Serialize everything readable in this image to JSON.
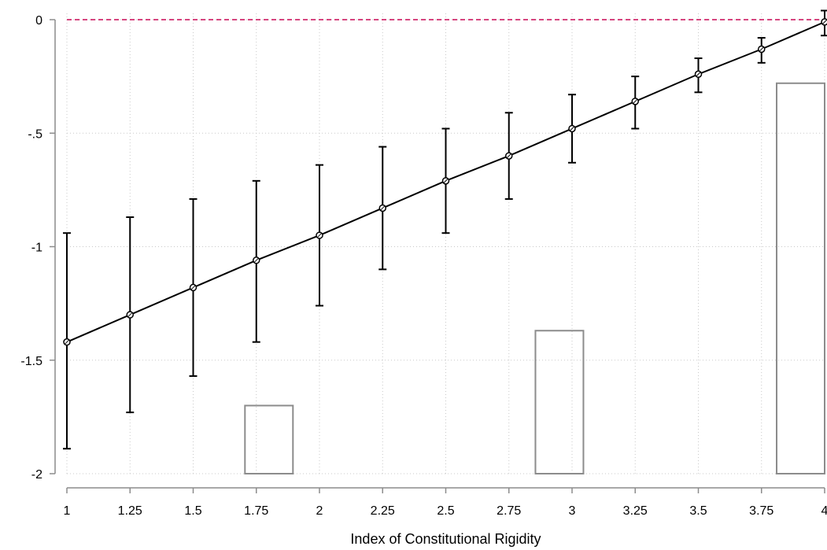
{
  "chart_data": {
    "type": "line",
    "xlabel": "Index of Constitutional Rigidity",
    "ylabel": "",
    "xlim": [
      1,
      4
    ],
    "ylim": [
      -2,
      0
    ],
    "x_ticks": [
      1,
      1.25,
      1.5,
      1.75,
      2,
      2.25,
      2.5,
      2.75,
      3,
      3.25,
      3.5,
      3.75,
      4
    ],
    "x_tick_labels": [
      "1",
      "1.25",
      "1.5",
      "1.75",
      "2",
      "2.25",
      "2.5",
      "2.75",
      "3",
      "3.25",
      "3.5",
      "3.75",
      "4"
    ],
    "y_ticks": [
      0,
      -0.5,
      -1,
      -1.5,
      -2
    ],
    "y_tick_labels": [
      "0",
      "-.5",
      "-1",
      "-1.5",
      "-2"
    ],
    "grid": true,
    "reference_line": {
      "y": 0,
      "style": "dashed",
      "color": "#d6457f"
    },
    "colors": {
      "line": "#000000",
      "bars": "#8c8c8c",
      "grid": "#c8c8c8",
      "axis": "#8c8c8c"
    },
    "series": [
      {
        "type": "line_with_error_bars",
        "x": [
          1,
          1.25,
          1.5,
          1.75,
          2,
          2.25,
          2.5,
          2.75,
          3,
          3.25,
          3.5,
          3.75,
          4
        ],
        "values": [
          -1.42,
          -1.3,
          -1.18,
          -1.06,
          -0.95,
          -0.83,
          -0.71,
          -0.6,
          -0.48,
          -0.36,
          -0.24,
          -0.13,
          -0.01
        ],
        "ci_low": [
          -1.89,
          -1.73,
          -1.57,
          -1.42,
          -1.26,
          -1.1,
          -0.94,
          -0.79,
          -0.63,
          -0.48,
          -0.32,
          -0.19,
          -0.07
        ],
        "ci_high": [
          -0.94,
          -0.87,
          -0.79,
          -0.71,
          -0.64,
          -0.56,
          -0.48,
          -0.41,
          -0.33,
          -0.25,
          -0.17,
          -0.08,
          0.04
        ]
      },
      {
        "type": "histogram",
        "bins": [
          {
            "x0": 1.705,
            "x1": 1.895,
            "value": -1.7
          },
          {
            "x0": 2.855,
            "x1": 3.045,
            "value": -1.37
          },
          {
            "x0": 3.81,
            "x1": 4.0,
            "value": -0.28
          }
        ]
      }
    ]
  }
}
